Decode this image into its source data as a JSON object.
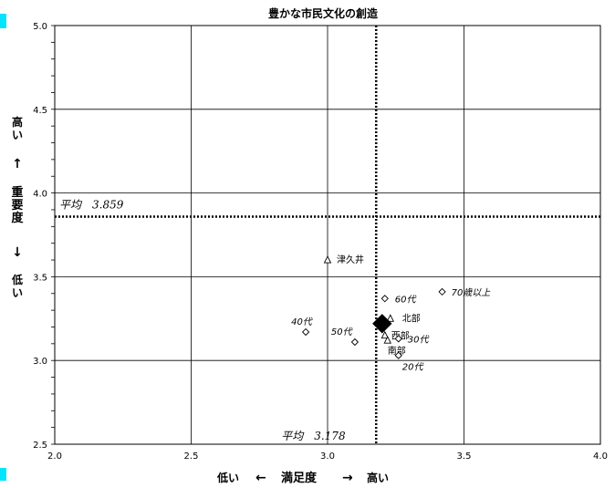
{
  "chart_data": {
    "type": "scatter",
    "title": "豊かな市民文化の創造",
    "xlim": [
      2.0,
      4.0
    ],
    "ylim": [
      2.5,
      5.0
    ],
    "x_ticks": [
      "2.0",
      "2.5",
      "3.0",
      "3.5",
      "4.0"
    ],
    "y_ticks": [
      "2.5",
      "3.0",
      "3.5",
      "4.0",
      "4.5",
      "5.0"
    ],
    "xlabel": {
      "low": "低い",
      "arrow_left": "←",
      "main": "満足度",
      "arrow_right": "→",
      "high": "高い"
    },
    "ylabel": {
      "high": "高い",
      "arrow_up": "↑",
      "main": "重要度",
      "arrow_down": "↓",
      "low": "低い"
    },
    "grid": true,
    "reference_lines": {
      "x": {
        "value": 3.178,
        "label": "平均　3.178"
      },
      "y": {
        "value": 3.859,
        "label": "平均　3.859"
      }
    },
    "points": [
      {
        "label": "津久井",
        "x": 3.0,
        "y": 3.6,
        "marker": "triangle",
        "label_style": "normal"
      },
      {
        "label": "北部",
        "x": 3.23,
        "y": 3.25,
        "marker": "triangle",
        "label_style": "normal"
      },
      {
        "label": "西部",
        "x": 3.21,
        "y": 3.15,
        "marker": "triangle",
        "label_style": "normal"
      },
      {
        "label": "南部",
        "x": 3.22,
        "y": 3.12,
        "marker": "triangle",
        "label_style": "normal"
      },
      {
        "label": "60代",
        "x": 3.21,
        "y": 3.37,
        "marker": "diamond",
        "label_style": "italic"
      },
      {
        "label": "70歳以上",
        "x": 3.42,
        "y": 3.41,
        "marker": "diamond",
        "label_style": "italic"
      },
      {
        "label": "40代",
        "x": 2.92,
        "y": 3.17,
        "marker": "diamond",
        "label_style": "italic"
      },
      {
        "label": "50代",
        "x": 3.1,
        "y": 3.11,
        "marker": "diamond",
        "label_style": "italic"
      },
      {
        "label": "30代",
        "x": 3.26,
        "y": 3.13,
        "marker": "diamond",
        "label_style": "italic"
      },
      {
        "label": "20代",
        "x": 3.26,
        "y": 3.03,
        "marker": "diamond",
        "label_style": "italic"
      },
      {
        "label": "",
        "x": 3.2,
        "y": 3.22,
        "marker": "big-diamond",
        "label_style": "normal"
      }
    ],
    "colors": {
      "accent": "#00e5ff",
      "marks": "#000000",
      "grid": "#000000"
    }
  }
}
